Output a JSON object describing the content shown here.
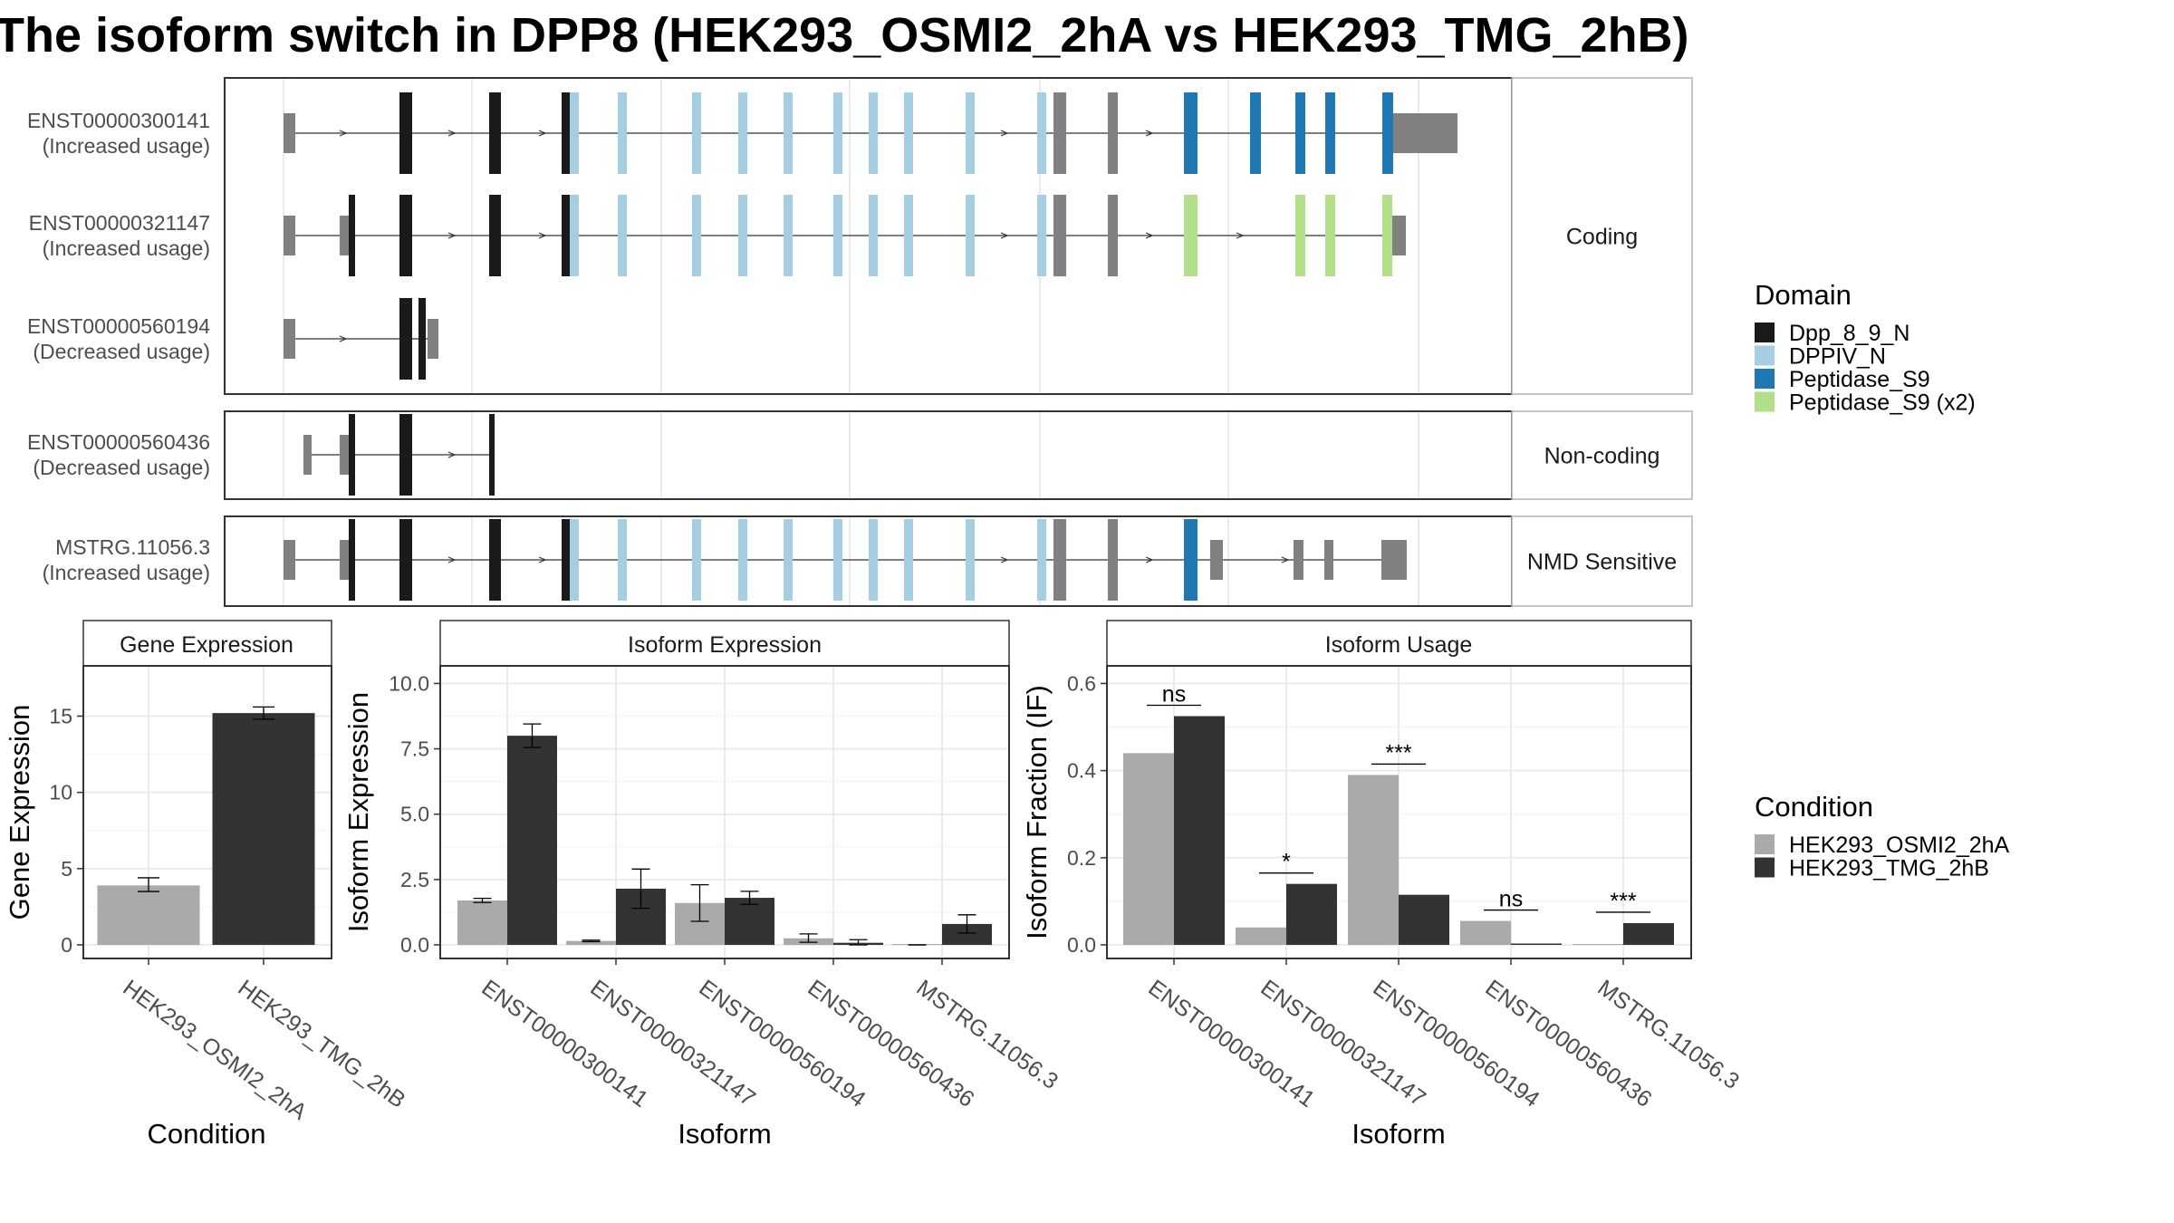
{
  "title": "The isoform switch in DPP8 (HEK293_OSMI2_2hA vs HEK293_TMG_2hB)",
  "colors": {
    "dpp_8_9_n": "#1a1a1a",
    "dppiv_n": "#a6cee3",
    "peptidase_s9": "#1f78b4",
    "peptidase_s9_x2": "#b2df8a",
    "utr_exon": "#808080",
    "condition_a": "#aaaaaa",
    "condition_b": "#333333",
    "panel_border": "#333333",
    "grid": "#ebebeb",
    "strip_border": "#b3b3b3"
  },
  "structure": {
    "categories": [
      "Coding",
      "Non-coding",
      "NMD Sensitive"
    ],
    "isoforms": [
      {
        "id": "ENST00000300141",
        "usage": "(Increased usage)",
        "category": "Coding"
      },
      {
        "id": "ENST00000321147",
        "usage": "(Increased usage)",
        "category": "Coding"
      },
      {
        "id": "ENST00000560194",
        "usage": "(Decreased usage)",
        "category": "Coding"
      },
      {
        "id": "ENST00000560436",
        "usage": "(Decreased usage)",
        "category": "Non-coding"
      },
      {
        "id": "MSTRG.11056.3",
        "usage": "(Increased usage)",
        "category": "NMD Sensitive"
      }
    ]
  },
  "legend_domain": {
    "title": "Domain",
    "items": [
      {
        "label": "Dpp_8_9_N",
        "color_key": "dpp_8_9_n"
      },
      {
        "label": "DPPIV_N",
        "color_key": "dppiv_n"
      },
      {
        "label": "Peptidase_S9",
        "color_key": "peptidase_s9"
      },
      {
        "label": "Peptidase_S9 (x2)",
        "color_key": "peptidase_s9_x2"
      }
    ]
  },
  "legend_condition": {
    "title": "Condition",
    "items": [
      {
        "label": "HEK293_OSMI2_2hA",
        "color_key": "condition_a"
      },
      {
        "label": "HEK293_TMG_2hB",
        "color_key": "condition_b"
      }
    ]
  },
  "chart_data": [
    {
      "type": "bar",
      "title": "Gene Expression",
      "xlabel": "Condition",
      "ylabel": "Gene Expression",
      "categories": [
        "HEK293_OSMI2_2hA",
        "HEK293_TMG_2hB"
      ],
      "values": [
        3.9,
        15.2
      ],
      "errors": [
        [
          3.5,
          4.4
        ],
        [
          14.8,
          15.6
        ]
      ],
      "yticks": [
        0,
        5,
        10,
        15
      ],
      "ytick_labels": [
        "0",
        "5",
        "10",
        "15"
      ],
      "ylim": [
        0,
        18
      ],
      "grid": true
    },
    {
      "type": "bar",
      "title": "Isoform Expression",
      "xlabel": "Isoform",
      "ylabel": "Isoform Expression",
      "categories": [
        "ENST00000300141",
        "ENST00000321147",
        "ENST00000560194",
        "ENST00000560436",
        "MSTRG.11056.3"
      ],
      "series": [
        {
          "name": "HEK293_OSMI2_2hA",
          "values": [
            1.7,
            0.15,
            1.6,
            0.25,
            0.0
          ],
          "errors": [
            [
              1.62,
              1.78
            ],
            [
              0.12,
              0.18
            ],
            [
              0.9,
              2.3
            ],
            [
              0.1,
              0.42
            ],
            [
              0.0,
              0.0
            ]
          ]
        },
        {
          "name": "HEK293_TMG_2hB",
          "values": [
            8.0,
            2.15,
            1.8,
            0.08,
            0.8
          ],
          "errors": [
            [
              7.55,
              8.45
            ],
            [
              1.4,
              2.9
            ],
            [
              1.55,
              2.05
            ],
            [
              0.0,
              0.2
            ],
            [
              0.45,
              1.15
            ]
          ]
        }
      ],
      "yticks": [
        0,
        2.5,
        5,
        7.5,
        10
      ],
      "ytick_labels": [
        "0.0",
        "2.5",
        "5.0",
        "7.5",
        "10.0"
      ],
      "ylim": [
        0,
        10.5
      ],
      "grid": true
    },
    {
      "type": "bar",
      "title": "Isoform Usage",
      "xlabel": "Isoform",
      "ylabel": "Isoform Fraction (IF)",
      "categories": [
        "ENST00000300141",
        "ENST00000321147",
        "ENST00000560194",
        "ENST00000560436",
        "MSTRG.11056.3"
      ],
      "series": [
        {
          "name": "HEK293_OSMI2_2hA",
          "values": [
            0.44,
            0.04,
            0.39,
            0.055,
            0.0
          ]
        },
        {
          "name": "HEK293_TMG_2hB",
          "values": [
            0.525,
            0.14,
            0.115,
            0.003,
            0.05
          ]
        }
      ],
      "significance": [
        "ns",
        "*",
        "***",
        "ns",
        "***"
      ],
      "yticks": [
        0,
        0.2,
        0.4,
        0.6
      ],
      "ytick_labels": [
        "0.0",
        "0.2",
        "0.4",
        "0.6"
      ],
      "ylim": [
        0,
        0.63
      ],
      "grid": true
    }
  ]
}
